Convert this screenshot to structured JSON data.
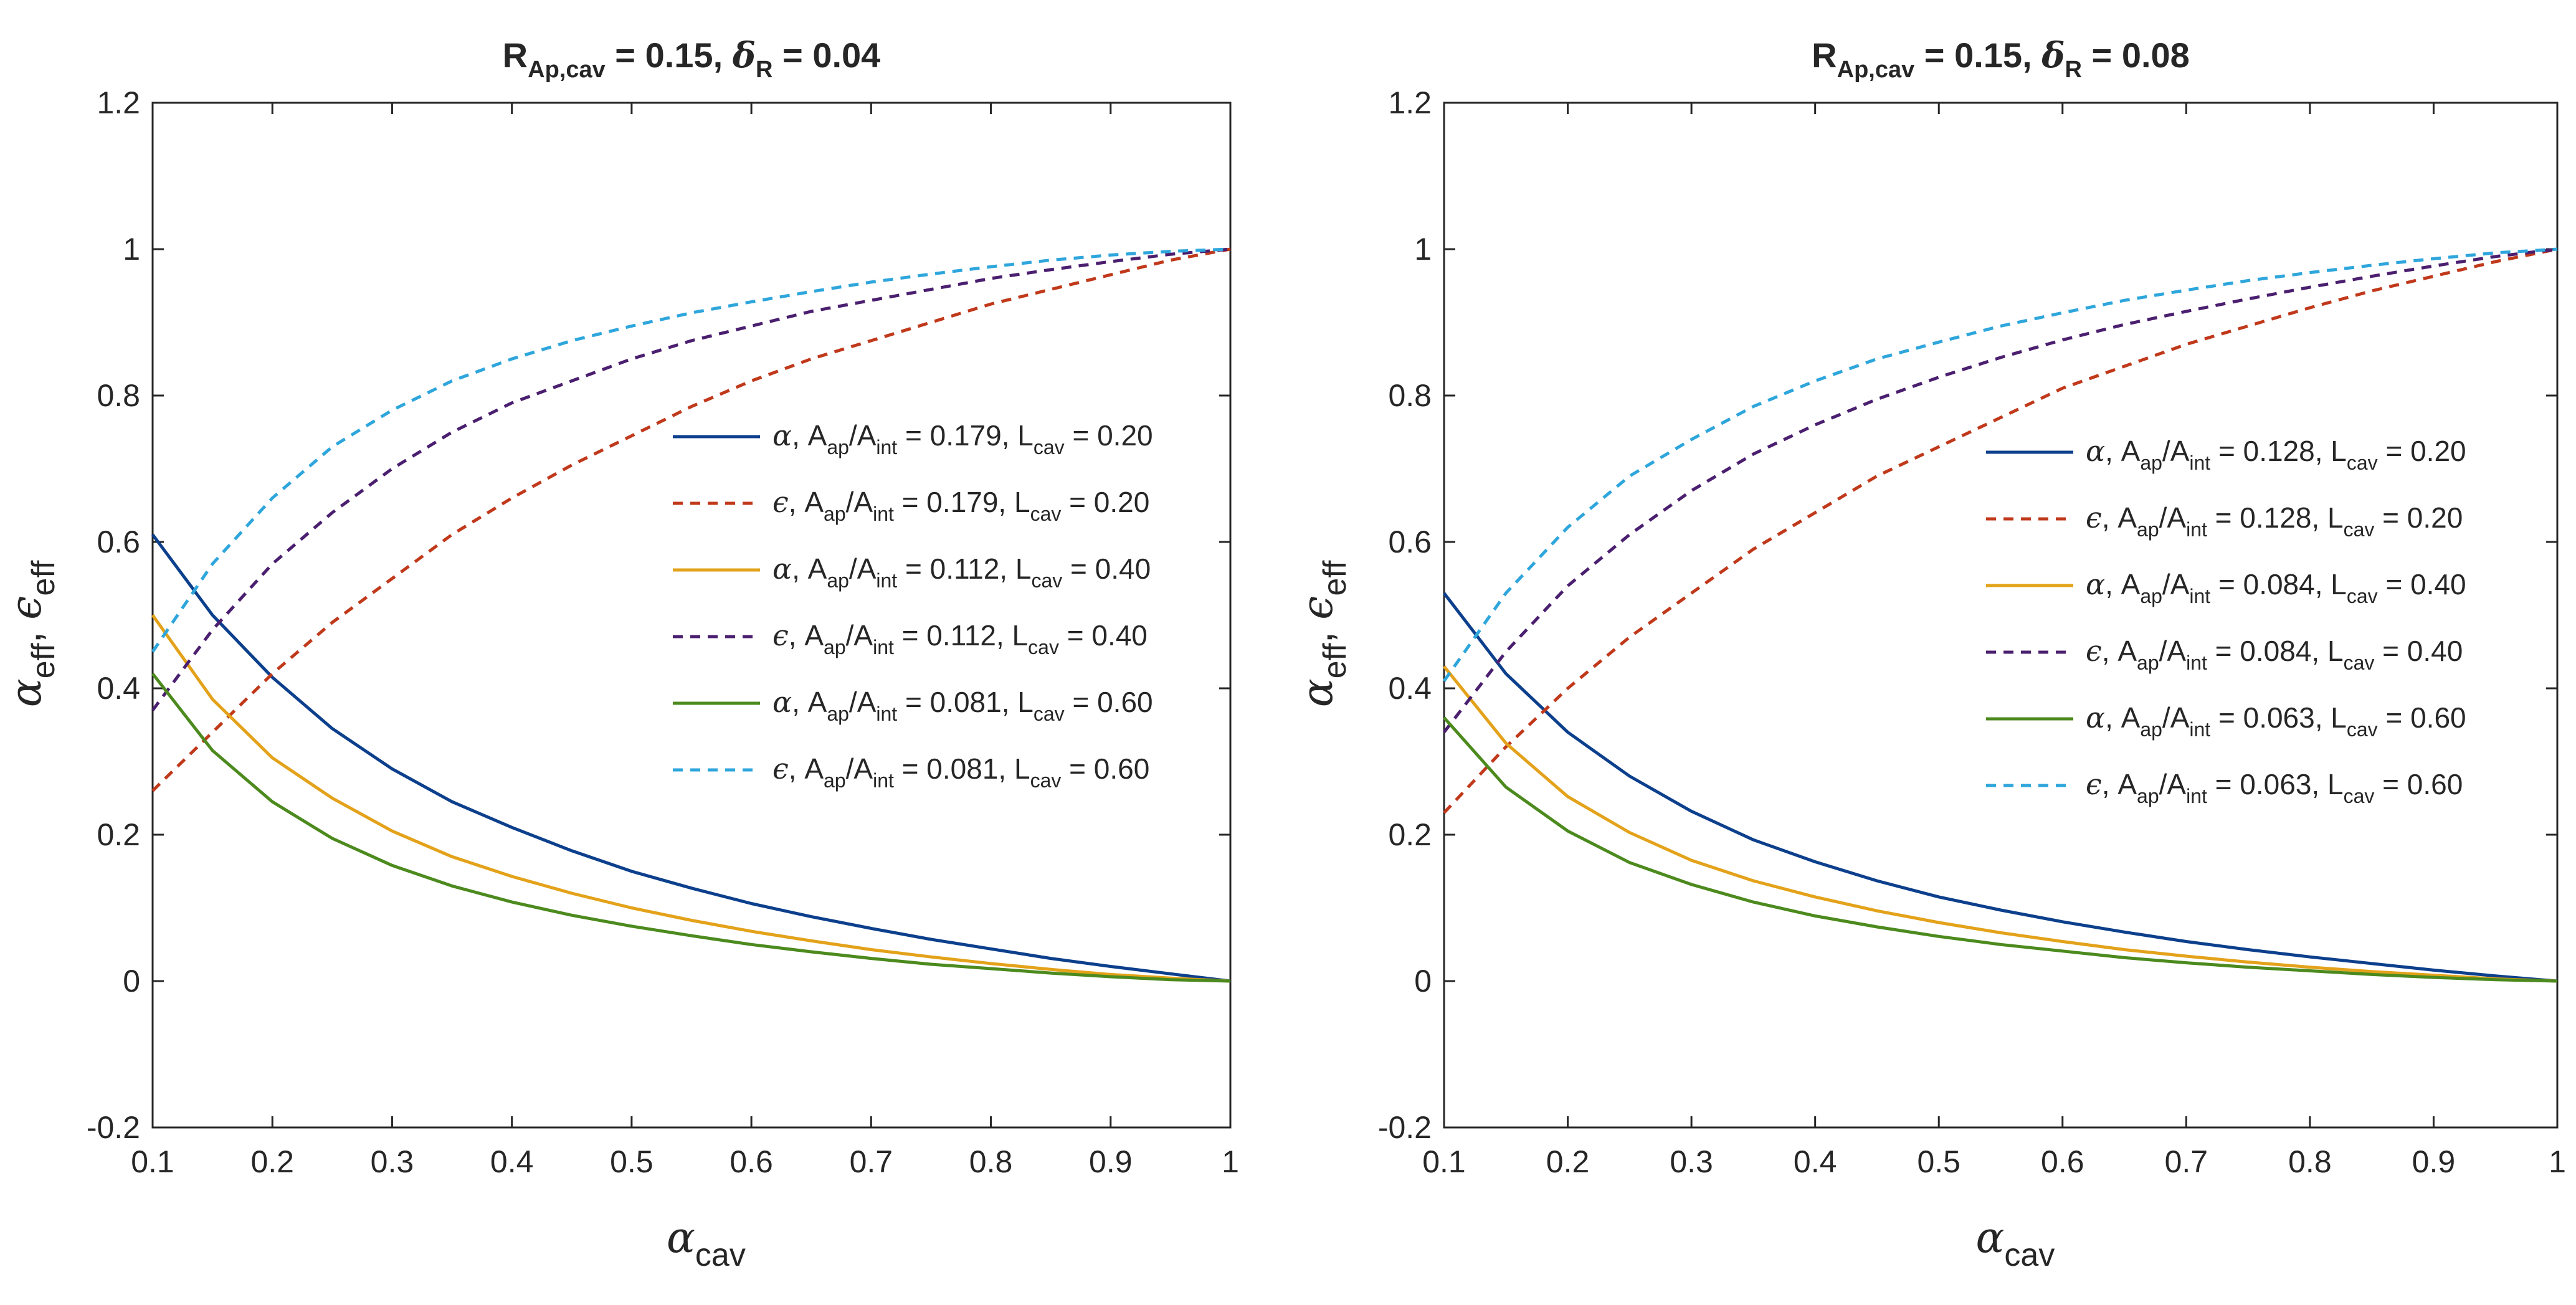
{
  "chart_data": [
    {
      "type": "line",
      "title": {
        "main": "R",
        "main_sub": "Ap,cav",
        "part1": " = 0.15,  ",
        "delta": "δ",
        "delta_sub": "R",
        "part2": " = 0.04"
      },
      "xlabel": {
        "sym": "α",
        "sub": "cav"
      },
      "ylabel": {
        "a_sym": "α",
        "a_sub": "eff",
        "sep": ", ",
        "e_sym": "ϵ",
        "e_sub": "eff"
      },
      "xlim": [
        0.1,
        1
      ],
      "ylim": [
        -0.2,
        1.2
      ],
      "xticks": [
        "0.1",
        "0.2",
        "0.3",
        "0.4",
        "0.5",
        "0.6",
        "0.7",
        "0.8",
        "0.9",
        "1"
      ],
      "yticks": [
        "-0.2",
        "0",
        "0.2",
        "0.4",
        "0.6",
        "0.8",
        "1",
        "1.2"
      ],
      "x": [
        0.1,
        0.15,
        0.2,
        0.25,
        0.3,
        0.35,
        0.4,
        0.45,
        0.5,
        0.55,
        0.6,
        0.65,
        0.7,
        0.75,
        0.8,
        0.85,
        0.9,
        0.95,
        1.0
      ],
      "legend_position": "middle-right",
      "series": [
        {
          "sym": "α",
          "ratio": "0.179",
          "lcav": "0.20",
          "color": "#0c3f8c",
          "dashed": false,
          "values": [
            0.61,
            0.5,
            0.415,
            0.345,
            0.29,
            0.245,
            0.21,
            0.178,
            0.15,
            0.127,
            0.106,
            0.088,
            0.072,
            0.057,
            0.044,
            0.031,
            0.02,
            0.01,
            0.0
          ]
        },
        {
          "sym": "ϵ",
          "ratio": "0.179",
          "lcav": "0.20",
          "color": "#c0391b",
          "dashed": true,
          "values": [
            0.26,
            0.34,
            0.42,
            0.49,
            0.55,
            0.61,
            0.66,
            0.705,
            0.745,
            0.785,
            0.82,
            0.85,
            0.875,
            0.9,
            0.925,
            0.945,
            0.965,
            0.985,
            1.0
          ]
        },
        {
          "sym": "α",
          "ratio": "0.112",
          "lcav": "0.40",
          "color": "#e3a21a",
          "dashed": false,
          "values": [
            0.5,
            0.385,
            0.305,
            0.25,
            0.205,
            0.17,
            0.143,
            0.12,
            0.1,
            0.083,
            0.068,
            0.055,
            0.043,
            0.033,
            0.024,
            0.016,
            0.009,
            0.004,
            0.0
          ]
        },
        {
          "sym": "ϵ",
          "ratio": "0.112",
          "lcav": "0.40",
          "color": "#4b1f6f",
          "dashed": true,
          "values": [
            0.37,
            0.48,
            0.57,
            0.64,
            0.7,
            0.75,
            0.79,
            0.82,
            0.85,
            0.875,
            0.895,
            0.915,
            0.93,
            0.945,
            0.96,
            0.972,
            0.983,
            0.993,
            1.0
          ]
        },
        {
          "sym": "α",
          "ratio": "0.081",
          "lcav": "0.60",
          "color": "#4c8a1e",
          "dashed": false,
          "values": [
            0.42,
            0.315,
            0.245,
            0.195,
            0.158,
            0.13,
            0.108,
            0.09,
            0.075,
            0.062,
            0.05,
            0.04,
            0.031,
            0.023,
            0.017,
            0.011,
            0.006,
            0.002,
            0.0
          ]
        },
        {
          "sym": "ϵ",
          "ratio": "0.081",
          "lcav": "0.60",
          "color": "#2ea6dc",
          "dashed": true,
          "values": [
            0.45,
            0.57,
            0.66,
            0.73,
            0.78,
            0.82,
            0.85,
            0.875,
            0.895,
            0.913,
            0.928,
            0.942,
            0.955,
            0.966,
            0.976,
            0.985,
            0.992,
            0.997,
            1.0
          ]
        }
      ]
    },
    {
      "type": "line",
      "title": {
        "main": "R",
        "main_sub": "Ap,cav",
        "part1": " = 0.15,  ",
        "delta": "δ",
        "delta_sub": "R",
        "part2": " = 0.08"
      },
      "xlabel": {
        "sym": "α",
        "sub": "cav"
      },
      "ylabel": {
        "a_sym": "α",
        "a_sub": "eff",
        "sep": ", ",
        "e_sym": "ϵ",
        "e_sub": "eff"
      },
      "xlim": [
        0.1,
        1
      ],
      "ylim": [
        -0.2,
        1.2
      ],
      "xticks": [
        "0.1",
        "0.2",
        "0.3",
        "0.4",
        "0.5",
        "0.6",
        "0.7",
        "0.8",
        "0.9",
        "1"
      ],
      "yticks": [
        "-0.2",
        "0",
        "0.2",
        "0.4",
        "0.6",
        "0.8",
        "1",
        "1.2"
      ],
      "x": [
        0.1,
        0.15,
        0.2,
        0.25,
        0.3,
        0.35,
        0.4,
        0.45,
        0.5,
        0.55,
        0.6,
        0.65,
        0.7,
        0.75,
        0.8,
        0.85,
        0.9,
        0.95,
        1.0
      ],
      "legend_position": "middle-right",
      "series": [
        {
          "sym": "α",
          "ratio": "0.128",
          "lcav": "0.20",
          "color": "#0c3f8c",
          "dashed": false,
          "values": [
            0.53,
            0.42,
            0.34,
            0.28,
            0.232,
            0.193,
            0.163,
            0.137,
            0.115,
            0.097,
            0.081,
            0.067,
            0.054,
            0.043,
            0.033,
            0.024,
            0.015,
            0.007,
            0.0
          ]
        },
        {
          "sym": "ϵ",
          "ratio": "0.128",
          "lcav": "0.20",
          "color": "#c0391b",
          "dashed": true,
          "values": [
            0.23,
            0.32,
            0.4,
            0.47,
            0.53,
            0.59,
            0.64,
            0.69,
            0.73,
            0.77,
            0.81,
            0.84,
            0.87,
            0.895,
            0.92,
            0.943,
            0.963,
            0.983,
            1.0
          ]
        },
        {
          "sym": "α",
          "ratio": "0.084",
          "lcav": "0.40",
          "color": "#e3a21a",
          "dashed": false,
          "values": [
            0.43,
            0.325,
            0.252,
            0.203,
            0.165,
            0.137,
            0.115,
            0.096,
            0.08,
            0.066,
            0.054,
            0.043,
            0.034,
            0.026,
            0.019,
            0.013,
            0.008,
            0.003,
            0.0
          ]
        },
        {
          "sym": "ϵ",
          "ratio": "0.084",
          "lcav": "0.40",
          "color": "#4b1f6f",
          "dashed": true,
          "values": [
            0.34,
            0.45,
            0.54,
            0.61,
            0.67,
            0.72,
            0.76,
            0.795,
            0.825,
            0.852,
            0.876,
            0.897,
            0.915,
            0.932,
            0.948,
            0.963,
            0.977,
            0.99,
            1.0
          ]
        },
        {
          "sym": "α",
          "ratio": "0.063",
          "lcav": "0.60",
          "color": "#4c8a1e",
          "dashed": false,
          "values": [
            0.36,
            0.265,
            0.205,
            0.162,
            0.132,
            0.108,
            0.089,
            0.074,
            0.061,
            0.05,
            0.041,
            0.032,
            0.025,
            0.019,
            0.014,
            0.009,
            0.005,
            0.002,
            0.0
          ]
        },
        {
          "sym": "ϵ",
          "ratio": "0.063",
          "lcav": "0.60",
          "color": "#2ea6dc",
          "dashed": true,
          "values": [
            0.41,
            0.53,
            0.62,
            0.69,
            0.74,
            0.785,
            0.82,
            0.85,
            0.873,
            0.895,
            0.913,
            0.93,
            0.944,
            0.957,
            0.968,
            0.978,
            0.987,
            0.995,
            1.0
          ]
        }
      ]
    }
  ],
  "legend_text": {
    "ap": "A",
    "ap_sub": "ap",
    "slash": "/A",
    "int_sub": "int",
    "eq": " = ",
    "lc": ", L",
    "cav_sub": "cav"
  }
}
